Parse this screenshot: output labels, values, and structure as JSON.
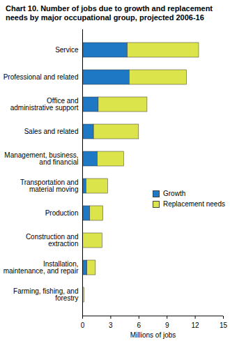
{
  "chart_data": {
    "type": "bar",
    "orientation": "horizontal",
    "stacked": true,
    "title": "Chart 10. Number of jobs due to growth and replacement needs by major occupational group, projected 2006-16",
    "x_label": "Millions of jobs",
    "categories": [
      "Service",
      "Professional and related",
      "Office and administrative support",
      "Sales and related",
      "Management, business, and financial",
      "Transportation and material moving",
      "Production",
      "Construction and extraction",
      "Installation, maintenance, and repair",
      "Farming, fishing, and forestry"
    ],
    "series": [
      {
        "name": "Growth",
        "color": "#1f78c4",
        "values": [
          4.8,
          5.0,
          1.7,
          1.2,
          1.6,
          0.4,
          0.8,
          0.0,
          0.5,
          0.0
        ]
      },
      {
        "name": "Replacement needs",
        "color": "#dbe44a",
        "values": [
          7.6,
          6.1,
          5.2,
          4.8,
          2.8,
          2.3,
          1.4,
          2.1,
          0.9,
          0.2
        ]
      }
    ],
    "xlim": [
      0,
      15
    ],
    "xticks": [
      0,
      3,
      6,
      9,
      12,
      15
    ],
    "grid": false,
    "legend": "right"
  }
}
